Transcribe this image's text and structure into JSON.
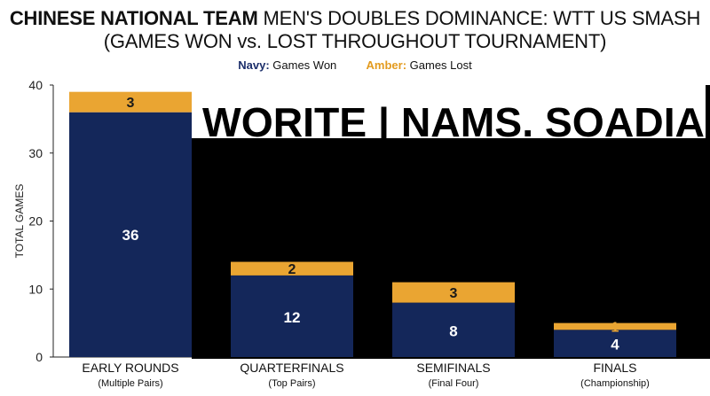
{
  "title_bold": "CHINESE NATIONAL TEAM",
  "title_rest": " MEN'S DOUBLES DOMINANCE: WTT US SMASH",
  "subtitle": "(GAMES WON vs. LOST THROUGHOUT TOURNAMENT)",
  "legend": {
    "won_key": "Navy:",
    "won_label": " Games Won",
    "lost_key": "Amber:",
    "lost_label": " Games Lost"
  },
  "overlay_text": "WORITE | NAMS. SOADIA",
  "colors": {
    "won": "#14275a",
    "lost": "#eaa532",
    "won_key": "#1c2f6b",
    "lost_key": "#e39b1f"
  },
  "chart_data": {
    "type": "bar",
    "stacked": true,
    "categories": [
      "EARLY ROUNDS",
      "QUARTERFINALS",
      "SEMIFINALS",
      "FINALS"
    ],
    "category_sublabels": [
      "(Multiple Pairs)",
      "(Top Pairs)",
      "(Final Four)",
      "(Championship)"
    ],
    "series": [
      {
        "name": "Games Won",
        "values": [
          36,
          12,
          8,
          4
        ]
      },
      {
        "name": "Games Lost",
        "values": [
          3,
          2,
          3,
          1
        ]
      }
    ],
    "ylabel": "TOTAL GAMES",
    "ylim": [
      0,
      40
    ],
    "yticks": [
      0,
      10,
      20,
      30,
      40
    ],
    "grid": false,
    "legend": "top-center"
  }
}
